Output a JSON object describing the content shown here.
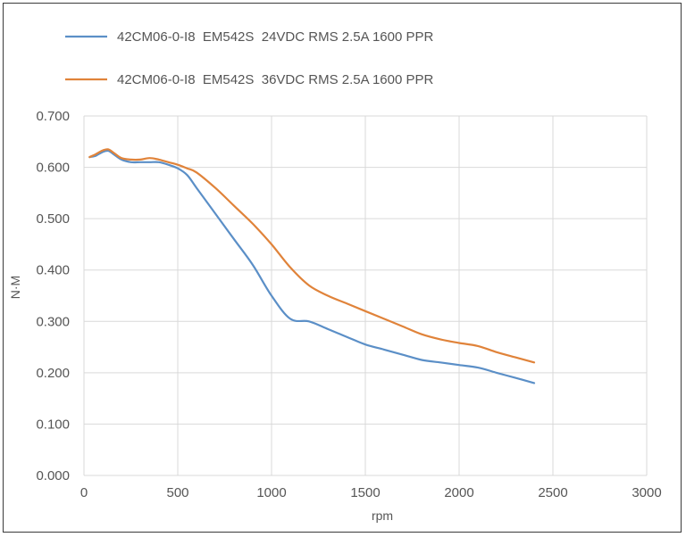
{
  "chart_data": {
    "type": "line",
    "xlabel": "rpm",
    "ylabel": "N·M",
    "xlim": [
      0,
      3000
    ],
    "ylim": [
      0,
      0.7
    ],
    "x_ticks": [
      "0",
      "500",
      "1000",
      "1500",
      "2000",
      "2500",
      "3000"
    ],
    "y_ticks": [
      "0.000",
      "0.100",
      "0.200",
      "0.300",
      "0.400",
      "0.500",
      "0.600",
      "0.700"
    ],
    "grid": true,
    "legend_position": "top-left",
    "series": [
      {
        "name": "42CM06-0-I8  EM542S  24VDC RMS 2.5A 1600 PPR",
        "color": "#5b8fc7",
        "x": [
          30,
          60,
          100,
          130,
          160,
          200,
          250,
          300,
          350,
          400,
          450,
          500,
          550,
          600,
          700,
          800,
          900,
          1000,
          1100,
          1200,
          1300,
          1400,
          1500,
          1600,
          1700,
          1800,
          1900,
          2000,
          2100,
          2200,
          2300,
          2400
        ],
        "y": [
          0.62,
          0.622,
          0.63,
          0.632,
          0.625,
          0.615,
          0.61,
          0.61,
          0.61,
          0.61,
          0.605,
          0.598,
          0.585,
          0.56,
          0.51,
          0.46,
          0.41,
          0.35,
          0.305,
          0.3,
          0.285,
          0.27,
          0.255,
          0.245,
          0.235,
          0.225,
          0.22,
          0.215,
          0.21,
          0.2,
          0.19,
          0.18
        ]
      },
      {
        "name": "42CM06-0-I8  EM542S  36VDC RMS 2.5A 1600 PPR",
        "color": "#e0833a",
        "x": [
          30,
          60,
          100,
          130,
          160,
          200,
          250,
          300,
          350,
          400,
          450,
          500,
          550,
          600,
          700,
          800,
          900,
          1000,
          1100,
          1200,
          1300,
          1400,
          1500,
          1600,
          1700,
          1800,
          1900,
          2000,
          2100,
          2200,
          2300,
          2400
        ],
        "y": [
          0.62,
          0.625,
          0.633,
          0.635,
          0.628,
          0.618,
          0.615,
          0.615,
          0.618,
          0.615,
          0.61,
          0.605,
          0.598,
          0.59,
          0.56,
          0.525,
          0.49,
          0.45,
          0.405,
          0.37,
          0.35,
          0.335,
          0.32,
          0.305,
          0.29,
          0.275,
          0.265,
          0.258,
          0.252,
          0.24,
          0.23,
          0.22
        ]
      }
    ]
  }
}
